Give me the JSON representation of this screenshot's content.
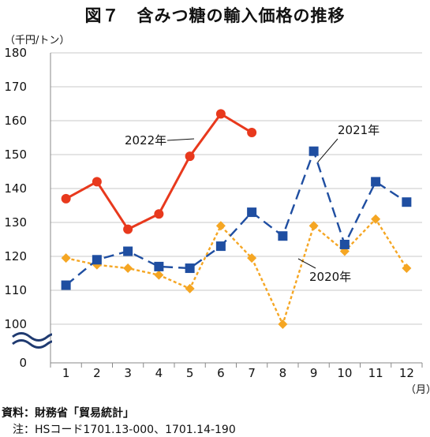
{
  "chart_data": {
    "type": "line",
    "title": "図７　含みつ糖の輸入価格の推移",
    "ylabel": "（千円/トン）",
    "xlabel": "（月）",
    "categories": [
      "1",
      "2",
      "3",
      "4",
      "5",
      "6",
      "7",
      "8",
      "9",
      "10",
      "11",
      "12"
    ],
    "ylim": [
      100,
      180
    ],
    "y_ticks": [
      "180",
      "170",
      "160",
      "150",
      "140",
      "130",
      "120",
      "110",
      "100",
      "0"
    ],
    "axis_break": true,
    "grid": true,
    "legend": "inline labels",
    "series": [
      {
        "name": "2022年",
        "color": "#e8391d",
        "marker": "circle",
        "dash": "solid",
        "values": [
          137,
          142,
          128,
          132.5,
          149.5,
          162,
          156.5,
          null,
          null,
          null,
          null,
          null
        ]
      },
      {
        "name": "2021年",
        "color": "#1f4ea1",
        "marker": "square",
        "dash": "long-dash",
        "values": [
          111.5,
          119,
          121.5,
          117,
          116.5,
          123,
          133,
          126,
          151,
          123.5,
          142,
          136
        ]
      },
      {
        "name": "2020年",
        "color": "#f5a623",
        "marker": "diamond",
        "dash": "dotted",
        "values": [
          119.5,
          117.5,
          116.5,
          114.5,
          110.5,
          129,
          119.5,
          100,
          129,
          121.5,
          131,
          116.5
        ]
      }
    ]
  },
  "source": {
    "line1": "資料：財務省「貿易統計」",
    "line2": "　注：HSコード1701.13-000、1701.14-190"
  }
}
